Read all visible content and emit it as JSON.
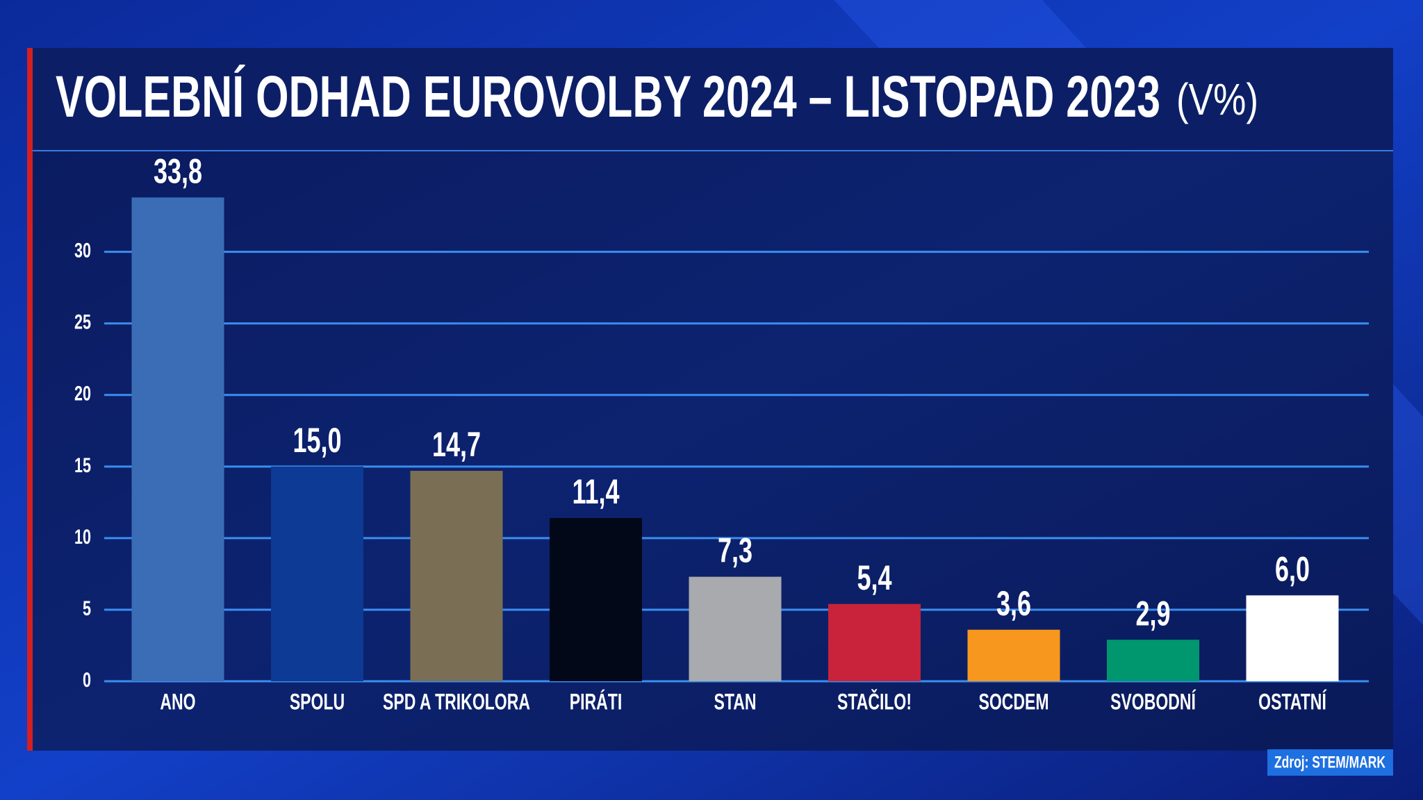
{
  "chart_data": {
    "type": "bar",
    "title": "VOLEBNÍ ODHAD EUROVOLBY 2024 – LISTOPAD 2023",
    "subtitle": "(V%)",
    "source": "Zdroj: STEM/MARK",
    "categories": [
      "ANO",
      "SPOLU",
      "SPD A TRIKOLORA",
      "PIRÁTI",
      "STAN",
      "STAČILO!",
      "SOCDEM",
      "SVOBODNÍ",
      "OSTATNÍ"
    ],
    "values": [
      33.8,
      15.0,
      14.7,
      11.4,
      7.3,
      5.4,
      3.6,
      2.9,
      6.0
    ],
    "value_labels": [
      "33,8",
      "15,0",
      "14,7",
      "11,4",
      "7,3",
      "5,4",
      "3,6",
      "2,9",
      "6,0"
    ],
    "colors": [
      "#3a6db5",
      "#0d3a94",
      "#7a6e55",
      "#020818",
      "#a8aaae",
      "#c8233a",
      "#f7971e",
      "#00966e",
      "#ffffff"
    ],
    "ylim": [
      0,
      36
    ],
    "yticks": [
      0,
      5,
      10,
      15,
      20,
      25,
      30
    ],
    "grid": true
  }
}
